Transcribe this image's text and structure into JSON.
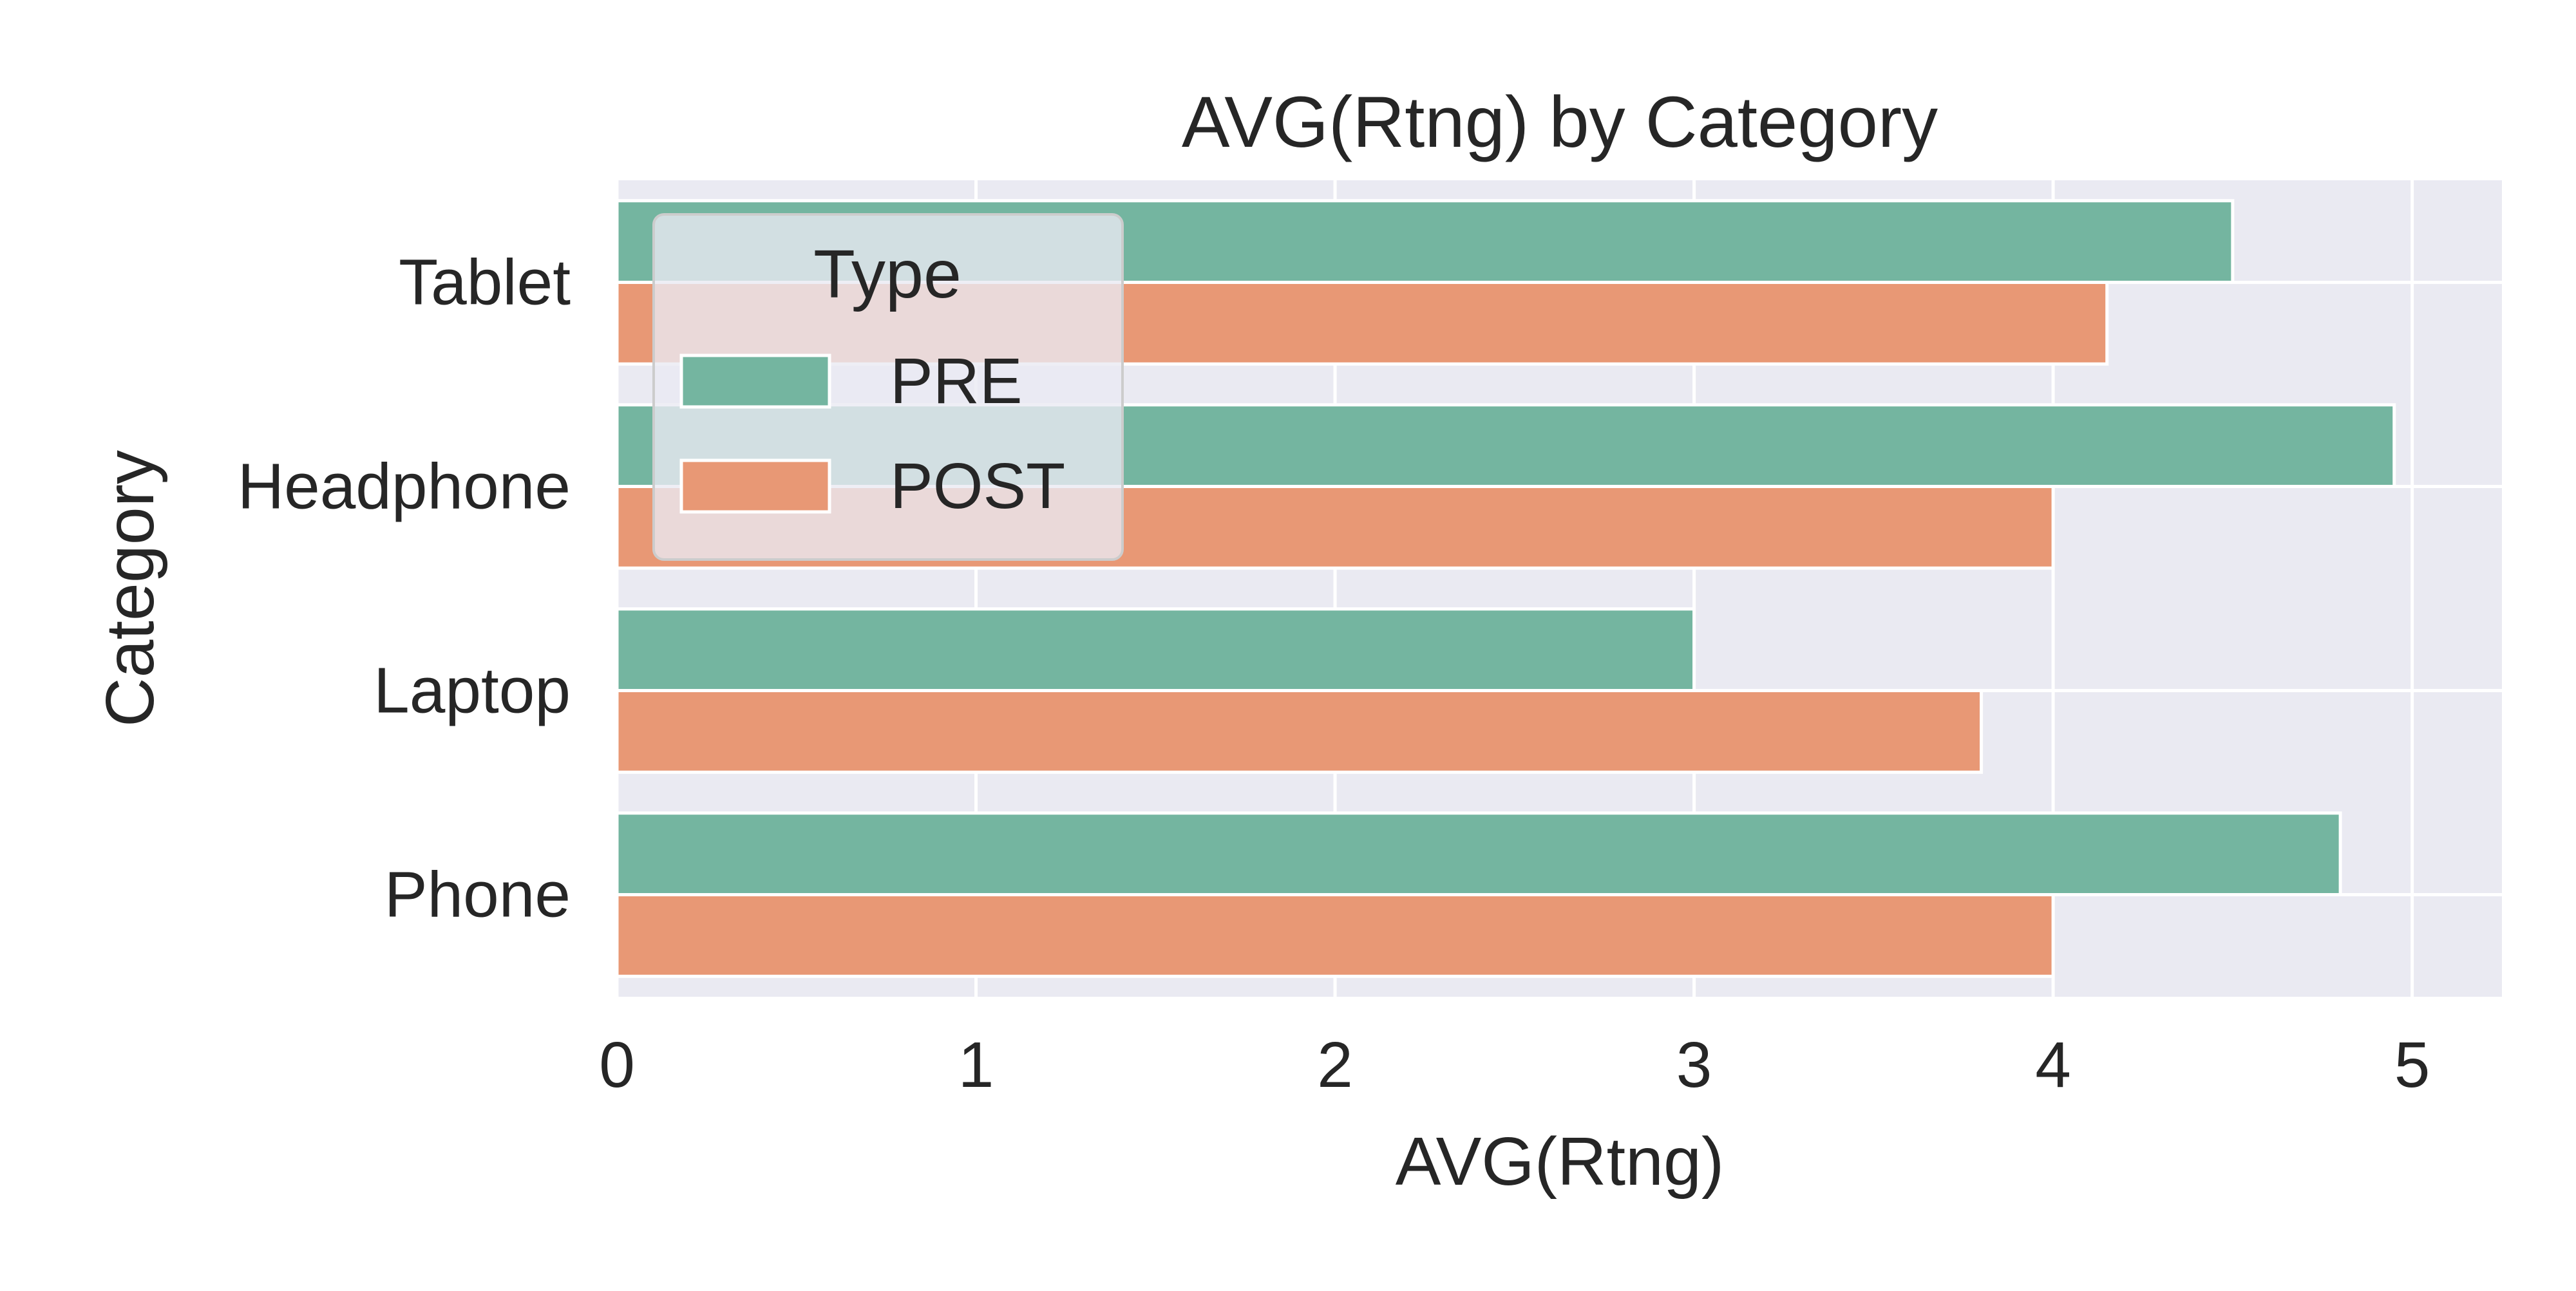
{
  "chart_data": {
    "type": "bar",
    "orientation": "horizontal",
    "title": "AVG(Rtng) by Category",
    "xlabel": "AVG(Rtng)",
    "ylabel": "Category",
    "categories": [
      "Tablet",
      "Headphone",
      "Laptop",
      "Phone"
    ],
    "series": [
      {
        "name": "PRE",
        "color": "#74b5a0",
        "values": [
          4.5,
          4.95,
          3.0,
          4.8
        ]
      },
      {
        "name": "POST",
        "color": "#e89875",
        "values": [
          4.15,
          4.0,
          3.8,
          4.0
        ]
      }
    ],
    "xlim": [
      0,
      5.25
    ],
    "xticks": [
      0,
      1,
      2,
      3,
      4,
      5
    ],
    "grid": true,
    "background": "#eaeaf2",
    "legend": {
      "title": "Type",
      "placement": "top-left"
    }
  }
}
